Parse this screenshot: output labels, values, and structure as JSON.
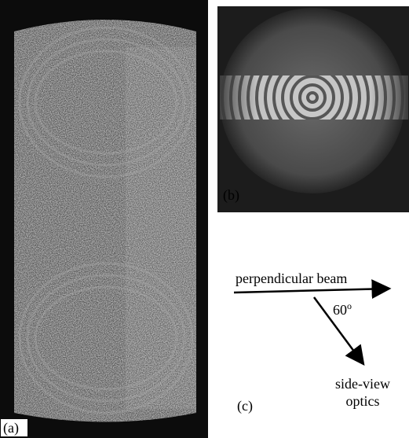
{
  "panels": [
    {
      "label": "(a)"
    },
    {
      "label": "(b)"
    },
    {
      "label": "(c)",
      "beam_label": "perpendicular beam",
      "angle": "60",
      "angle_unit": "o",
      "optics_label": [
        "side-view",
        "optics"
      ]
    }
  ]
}
